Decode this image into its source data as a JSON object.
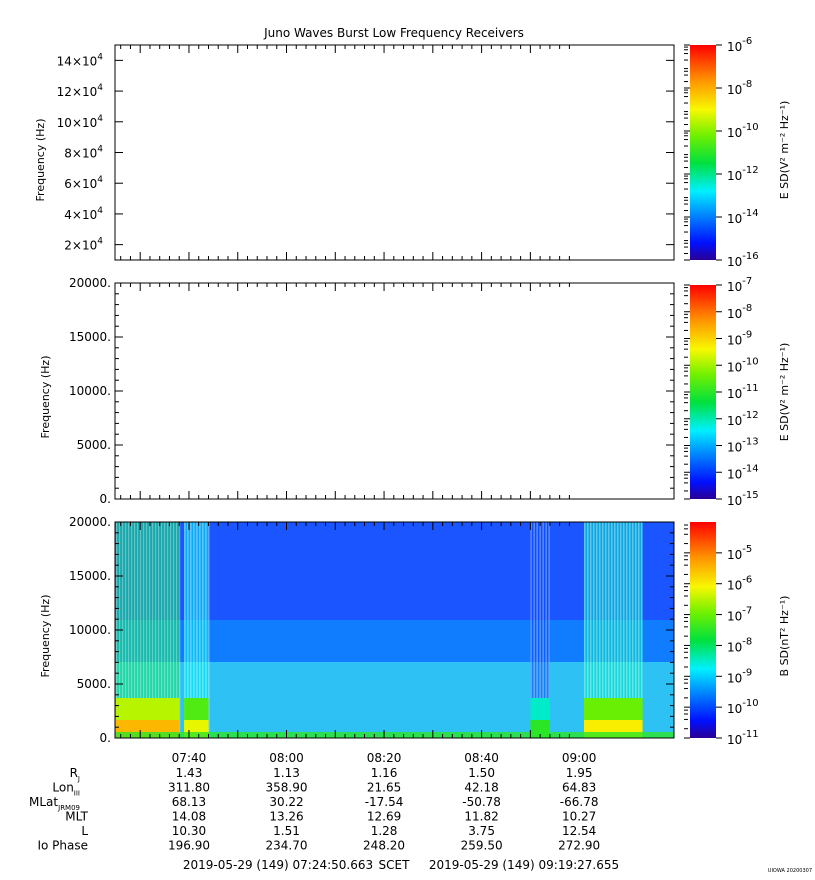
{
  "title": "Juno Waves Burst Low Frequency Receivers",
  "chart_data": [
    {
      "type": "heatmap",
      "panel": "top",
      "ylabel": "Frequency (Hz)",
      "ylim": [
        10000,
        150000
      ],
      "yticks": [
        {
          "value": 20000,
          "mant": "2×10",
          "exp": "4"
        },
        {
          "value": 40000,
          "mant": "4×10",
          "exp": "4"
        },
        {
          "value": 60000,
          "mant": "6×10",
          "exp": "4"
        },
        {
          "value": 80000,
          "mant": "8×10",
          "exp": "4"
        },
        {
          "value": 100000,
          "mant": "10×10",
          "exp": "4"
        },
        {
          "value": 120000,
          "mant": "12×10",
          "exp": "4"
        },
        {
          "value": 140000,
          "mant": "14×10",
          "exp": "4"
        }
      ],
      "colorbar": {
        "label": "E SD(V² m⁻² Hz⁻¹)",
        "range_exp": [
          -16,
          -6
        ],
        "ticks": [
          {
            "base": "10",
            "exp": "-6"
          },
          {
            "base": "10",
            "exp": "-8"
          },
          {
            "base": "10",
            "exp": "-10"
          },
          {
            "base": "10",
            "exp": "-12"
          },
          {
            "base": "10",
            "exp": "-14"
          },
          {
            "base": "10",
            "exp": "-16"
          }
        ]
      },
      "data": "empty"
    },
    {
      "type": "heatmap",
      "panel": "middle",
      "ylabel": "Frequency (Hz)",
      "ylim": [
        0,
        20000
      ],
      "yticks": [
        "20000.",
        "15000.",
        "10000.",
        "5000.",
        "0."
      ],
      "colorbar": {
        "label": "E SD(V² m⁻² Hz⁻¹)",
        "range_exp": [
          -15,
          -7
        ],
        "ticks": [
          {
            "base": "10",
            "exp": "-7"
          },
          {
            "base": "10",
            "exp": "-8"
          },
          {
            "base": "10",
            "exp": "-9"
          },
          {
            "base": "10",
            "exp": "-10"
          },
          {
            "base": "10",
            "exp": "-11"
          },
          {
            "base": "10",
            "exp": "-12"
          },
          {
            "base": "10",
            "exp": "-13"
          },
          {
            "base": "10",
            "exp": "-14"
          },
          {
            "base": "10",
            "exp": "-15"
          }
        ]
      },
      "data": "empty"
    },
    {
      "type": "heatmap",
      "panel": "bottom",
      "ylabel": "Frequency (Hz)",
      "ylim": [
        0,
        20000
      ],
      "yticks": [
        "20000.",
        "15000.",
        "10000.",
        "5000.",
        "0."
      ],
      "colorbar": {
        "label": "B SD(nT² Hz⁻¹)",
        "range_exp": [
          -11,
          -4
        ],
        "ticks": [
          {
            "base": "10",
            "exp": "-5"
          },
          {
            "base": "10",
            "exp": "-6"
          },
          {
            "base": "10",
            "exp": "-7"
          },
          {
            "base": "10",
            "exp": "-8"
          },
          {
            "base": "10",
            "exp": "-9"
          },
          {
            "base": "10",
            "exp": "-10"
          },
          {
            "base": "10",
            "exp": "-11"
          }
        ]
      },
      "background_level_exp": -10.3,
      "bursts": [
        {
          "start": "07:25",
          "end": "07:38",
          "level_exp": -5.5
        },
        {
          "start": "07:39",
          "end": "07:44",
          "level_exp": -6.2
        },
        {
          "start": "08:50",
          "end": "08:54",
          "level_exp": -7.5
        },
        {
          "start": "09:01",
          "end": "09:13",
          "level_exp": -6.0
        }
      ],
      "xlim": [
        "07:24:50",
        "09:19:27"
      ],
      "xticks": [
        "07:40",
        "08:00",
        "08:20",
        "08:40",
        "09:00"
      ]
    }
  ],
  "ephemeris": {
    "rows": [
      {
        "label": "R",
        "sub": "J",
        "values": [
          "1.43",
          "1.13",
          "1.16",
          "1.50",
          "1.95"
        ]
      },
      {
        "label": "Lon",
        "sub": "III",
        "values": [
          "311.80",
          "358.90",
          "21.65",
          "42.18",
          "64.83"
        ]
      },
      {
        "label": "MLat",
        "sub": "JRM09",
        "values": [
          "68.13",
          "30.22",
          "-17.54",
          "-50.78",
          "-66.78"
        ]
      },
      {
        "label": "MLT",
        "sub": "",
        "values": [
          "14.08",
          "13.26",
          "12.69",
          "11.82",
          "10.27"
        ]
      },
      {
        "label": "L",
        "sub": "",
        "values": [
          "10.30",
          "1.51",
          "1.28",
          "3.75",
          "12.54"
        ]
      },
      {
        "label": "Io Phase",
        "sub": "",
        "values": [
          "196.90",
          "234.70",
          "248.20",
          "259.50",
          "272.90"
        ]
      }
    ]
  },
  "footer": {
    "start": "2019-05-29 (149) 07:24:50.663",
    "frame": "SCET",
    "end": "2019-05-29 (149) 09:19:27.655",
    "stamp": "UIOWA 20200307"
  }
}
